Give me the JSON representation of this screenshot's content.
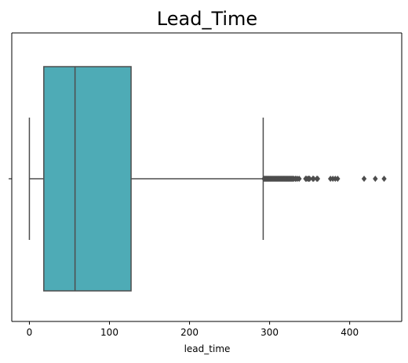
{
  "chart_data": {
    "type": "box",
    "title": "Lead_Time",
    "xlabel": "lead_time",
    "ylabel": "",
    "xlim": [
      -22,
      465
    ],
    "xticks": [
      0,
      100,
      200,
      300,
      400
    ],
    "orientation": "horizontal",
    "box": {
      "whisker_low": 0,
      "q1": 18,
      "median": 57,
      "q3": 127,
      "whisker_high": 292,
      "outliers": [
        293,
        294,
        295,
        296,
        297,
        298,
        299,
        300,
        301,
        302,
        303,
        304,
        305,
        306,
        307,
        308,
        309,
        310,
        311,
        312,
        313,
        314,
        315,
        316,
        317,
        318,
        319,
        320,
        321,
        322,
        323,
        324,
        325,
        326,
        327,
        328,
        329,
        330,
        332,
        333,
        335,
        337,
        345,
        346,
        348,
        349,
        350,
        354,
        355,
        359,
        360,
        376,
        379,
        382,
        385,
        418,
        432,
        443
      ]
    },
    "colors": {
      "box_fill": "#4eabb6",
      "line": "#4d4d4d",
      "outlier": "#4d4d4d"
    },
    "grid": false
  }
}
